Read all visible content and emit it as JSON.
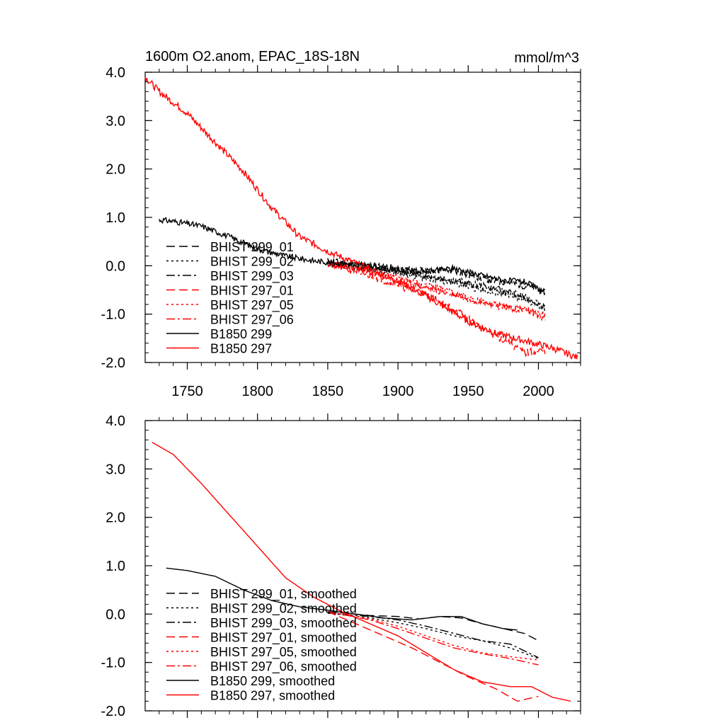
{
  "title": "1600m O2.anom, EPAC_18S-18N",
  "units": "mmol/m^3",
  "chart_data": [
    {
      "type": "line",
      "panel": "top",
      "title": "1600m O2.anom, EPAC_18S-18N",
      "units": "mmol/m^3",
      "xlim": [
        1720,
        2030
      ],
      "ylim": [
        -2.0,
        4.0
      ],
      "xticks": [
        1750,
        1800,
        1850,
        1900,
        1950,
        2000
      ],
      "xtick_labels": [
        "1750",
        "1800",
        "1850",
        "1900",
        "1950",
        "2000"
      ],
      "yticks": [
        4.0,
        3.0,
        2.0,
        1.0,
        0.0,
        -1.0,
        -2.0
      ],
      "ytick_labels": [
        "4.0",
        "3.0",
        "2.0",
        "1.0",
        "0.0",
        "-1.0",
        "-2.0"
      ],
      "legend": "lower-left",
      "series": [
        {
          "name": "BHIST 299_01",
          "label": "BHIST 299_01",
          "color": "#000000",
          "style": "dash",
          "noise": 0.07,
          "seed": 11,
          "x": [
            1850,
            1880,
            1900,
            1920,
            1935,
            1950,
            1965,
            1980,
            1995,
            2005
          ],
          "y": [
            0.1,
            0.0,
            -0.05,
            -0.1,
            -0.08,
            -0.2,
            -0.3,
            -0.35,
            -0.45,
            -0.55
          ]
        },
        {
          "name": "BHIST 299_02",
          "label": "BHIST 299_02",
          "color": "#000000",
          "style": "dot",
          "noise": 0.07,
          "seed": 12,
          "x": [
            1850,
            1880,
            1900,
            1920,
            1940,
            1960,
            1980,
            1995,
            2005
          ],
          "y": [
            0.05,
            -0.05,
            -0.15,
            -0.25,
            -0.35,
            -0.5,
            -0.6,
            -0.75,
            -0.95
          ]
        },
        {
          "name": "BHIST 299_03",
          "label": "BHIST 299_03",
          "color": "#000000",
          "style": "dashdot",
          "noise": 0.07,
          "seed": 13,
          "x": [
            1850,
            1880,
            1900,
            1920,
            1940,
            1960,
            1980,
            1995,
            2005
          ],
          "y": [
            0.05,
            -0.05,
            -0.1,
            -0.2,
            -0.3,
            -0.42,
            -0.55,
            -0.7,
            -0.85
          ]
        },
        {
          "name": "BHIST 297_01",
          "label": "BHIST 297_01",
          "color": "#ff0000",
          "style": "dash",
          "noise": 0.08,
          "seed": 21,
          "x": [
            1850,
            1880,
            1900,
            1920,
            1940,
            1960,
            1980,
            1990,
            2005
          ],
          "y": [
            0.05,
            -0.2,
            -0.4,
            -0.6,
            -0.9,
            -1.3,
            -1.6,
            -1.8,
            -1.75
          ]
        },
        {
          "name": "BHIST 297_05",
          "label": "BHIST 297_05",
          "color": "#ff0000",
          "style": "dot",
          "noise": 0.07,
          "seed": 22,
          "x": [
            1850,
            1880,
            1900,
            1920,
            1940,
            1960,
            1980,
            1995,
            2005
          ],
          "y": [
            0.05,
            -0.1,
            -0.25,
            -0.4,
            -0.55,
            -0.75,
            -0.9,
            -0.92,
            -1.0
          ]
        },
        {
          "name": "BHIST 297_06",
          "label": "BHIST 297_06",
          "color": "#ff0000",
          "style": "dashdot",
          "noise": 0.07,
          "seed": 23,
          "x": [
            1850,
            1880,
            1900,
            1920,
            1940,
            1960,
            1980,
            1995,
            2005
          ],
          "y": [
            0.05,
            -0.15,
            -0.3,
            -0.45,
            -0.6,
            -0.75,
            -0.85,
            -0.95,
            -1.1
          ]
        },
        {
          "name": "B1850 299",
          "label": "B1850 299",
          "color": "#000000",
          "style": "solid",
          "noise": 0.06,
          "seed": 31,
          "x": [
            1730,
            1740,
            1760,
            1780,
            1800,
            1820,
            1840,
            1860,
            1880,
            1900,
            1920,
            1940,
            1960,
            1975,
            1990,
            2005
          ],
          "y": [
            0.95,
            0.92,
            0.82,
            0.6,
            0.35,
            0.2,
            0.1,
            0.05,
            0.0,
            -0.1,
            -0.12,
            -0.05,
            -0.2,
            -0.3,
            -0.33,
            -0.55
          ]
        },
        {
          "name": "B1850 297",
          "label": "B1850 297",
          "color": "#ff0000",
          "style": "solid",
          "noise": 0.07,
          "seed": 32,
          "x": [
            1720,
            1730,
            1750,
            1770,
            1790,
            1810,
            1830,
            1850,
            1870,
            1890,
            1910,
            1930,
            1950,
            1970,
            1990,
            2010,
            2028
          ],
          "y": [
            3.9,
            3.6,
            3.15,
            2.55,
            1.95,
            1.2,
            0.6,
            0.3,
            0.05,
            -0.2,
            -0.45,
            -0.8,
            -1.15,
            -1.4,
            -1.55,
            -1.7,
            -1.9
          ]
        }
      ]
    },
    {
      "type": "line",
      "panel": "bottom",
      "xlim": [
        1720,
        2030
      ],
      "ylim": [
        -2.0,
        4.0
      ],
      "xticks": [
        1750,
        1800,
        1850,
        1900,
        1950,
        2000
      ],
      "yticks": [
        4.0,
        3.0,
        2.0,
        1.0,
        0.0,
        -1.0,
        -2.0
      ],
      "ytick_labels": [
        "4.0",
        "3.0",
        "2.0",
        "1.0",
        "0.0",
        "-1.0",
        "-2.0"
      ],
      "legend": "lower-left",
      "series": [
        {
          "name": "BHIST 299_01, smoothed",
          "label": "BHIST 299_01, smoothed",
          "color": "#000000",
          "style": "dash",
          "x": [
            1850,
            1880,
            1900,
            1915,
            1930,
            1945,
            1960,
            1975,
            1990,
            2000
          ],
          "y": [
            0.05,
            -0.03,
            -0.05,
            -0.1,
            -0.05,
            -0.08,
            -0.2,
            -0.3,
            -0.4,
            -0.55
          ]
        },
        {
          "name": "BHIST 299_02, smoothed",
          "label": "BHIST 299_02, smoothed",
          "color": "#000000",
          "style": "dot",
          "x": [
            1850,
            1880,
            1900,
            1920,
            1940,
            1960,
            1980,
            2000
          ],
          "y": [
            0.02,
            -0.08,
            -0.18,
            -0.3,
            -0.45,
            -0.55,
            -0.7,
            -0.92
          ]
        },
        {
          "name": "BHIST 299_03, smoothed",
          "label": "BHIST 299_03, smoothed",
          "color": "#000000",
          "style": "dashdot",
          "x": [
            1850,
            1880,
            1900,
            1920,
            1940,
            1960,
            1980,
            2000
          ],
          "y": [
            0.02,
            -0.05,
            -0.12,
            -0.25,
            -0.4,
            -0.55,
            -0.62,
            -0.9
          ]
        },
        {
          "name": "BHIST 297_01, smoothed",
          "label": "BHIST 297_01, smoothed",
          "color": "#ff0000",
          "style": "dash",
          "x": [
            1850,
            1870,
            1890,
            1910,
            1930,
            1950,
            1970,
            1985,
            2000
          ],
          "y": [
            0.05,
            -0.2,
            -0.45,
            -0.7,
            -1.0,
            -1.3,
            -1.55,
            -1.8,
            -1.7
          ]
        },
        {
          "name": "BHIST 297_05, smoothed",
          "label": "BHIST 297_05, smoothed",
          "color": "#ff0000",
          "style": "dot",
          "x": [
            1850,
            1880,
            1900,
            1920,
            1940,
            1960,
            1980,
            2000
          ],
          "y": [
            0.05,
            -0.1,
            -0.25,
            -0.45,
            -0.65,
            -0.8,
            -0.88,
            -0.95
          ]
        },
        {
          "name": "BHIST 297_06, smoothed",
          "label": "BHIST 297_06, smoothed",
          "color": "#ff0000",
          "style": "dashdot",
          "x": [
            1850,
            1880,
            1900,
            1920,
            1940,
            1960,
            1980,
            2000
          ],
          "y": [
            0.05,
            -0.12,
            -0.3,
            -0.5,
            -0.7,
            -0.82,
            -0.92,
            -1.05
          ]
        },
        {
          "name": "B1850 299, smoothed",
          "label": "B1850 299, smoothed",
          "color": "#000000",
          "style": "solid",
          "x": [
            1735,
            1750,
            1770,
            1790,
            1810,
            1830,
            1850,
            1870,
            1890,
            1910,
            1930,
            1945,
            1960,
            1975,
            1985
          ],
          "y": [
            0.95,
            0.9,
            0.78,
            0.5,
            0.28,
            0.15,
            0.08,
            0.0,
            -0.08,
            -0.12,
            -0.05,
            -0.05,
            -0.2,
            -0.3,
            -0.33
          ]
        },
        {
          "name": "B1850 297, smoothed",
          "label": "B1850 297, smoothed",
          "color": "#ff0000",
          "style": "solid",
          "x": [
            1725,
            1740,
            1760,
            1780,
            1800,
            1820,
            1840,
            1860,
            1880,
            1900,
            1920,
            1940,
            1960,
            1980,
            1995,
            2010,
            2023
          ],
          "y": [
            3.55,
            3.3,
            2.7,
            2.05,
            1.4,
            0.75,
            0.35,
            0.05,
            -0.2,
            -0.45,
            -0.8,
            -1.15,
            -1.4,
            -1.5,
            -1.5,
            -1.72,
            -1.8
          ]
        }
      ]
    }
  ]
}
